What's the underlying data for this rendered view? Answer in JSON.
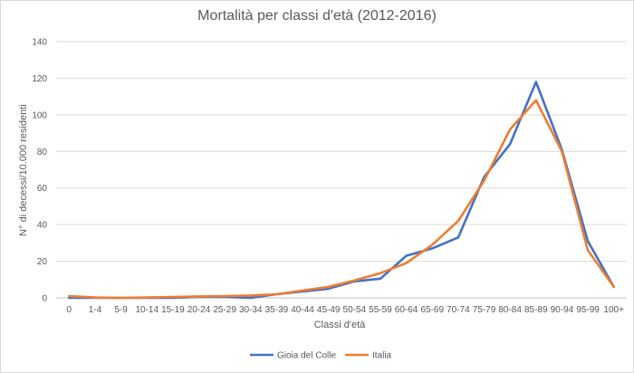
{
  "chart_data": {
    "type": "line",
    "title": "Mortalità per classi d'età (2012-2016)",
    "xlabel": "Classi d'età",
    "ylabel": "N° di decessi/10.000 residenti",
    "categories": [
      "0",
      "1-4",
      "5-9",
      "10-14",
      "15-19",
      "20-24",
      "25-29",
      "30-34",
      "35-39",
      "40-44",
      "45-49",
      "50-54",
      "55-59",
      "60-64",
      "65-69",
      "70-74",
      "75-79",
      "80-84",
      "85-89",
      "90-94",
      "95-99",
      "100+"
    ],
    "ylim": [
      0,
      140
    ],
    "yticks": [
      "0",
      "20",
      "40",
      "60",
      "80",
      "100",
      "120",
      "140"
    ],
    "grid": "horizontal",
    "legend_position": "bottom",
    "series": [
      {
        "name": "Gioia del Colle",
        "color": "#4472c4",
        "values": [
          0,
          0,
          0,
          0,
          0,
          0.5,
          0.5,
          0,
          2,
          3.5,
          5,
          9,
          10.5,
          23,
          27,
          33,
          66,
          84,
          118,
          81,
          31,
          6
        ]
      },
      {
        "name": "Italia",
        "color": "#ed7d31",
        "values": [
          1,
          0.2,
          0,
          0.2,
          0.5,
          0.8,
          1,
          1.3,
          2,
          4,
          6,
          9.5,
          13.5,
          19,
          29,
          42,
          64,
          92,
          108,
          80,
          26,
          6
        ]
      }
    ]
  }
}
